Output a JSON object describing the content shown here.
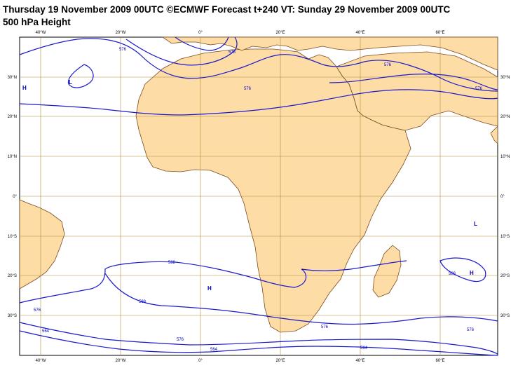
{
  "header": {
    "title": "Thursday 19 November 2009 00UTC ©ECMWF Forecast t+240 VT: Sunday 29 November 2009 00UTC",
    "subtitle": "500 hPa Height"
  },
  "colors": {
    "land": "#fddca6",
    "coast": "#7a4a1e",
    "grid": "#b08a3a",
    "contour": "#1a1acc"
  },
  "axes": {
    "lon_ticks": [
      "40°W",
      "20°W",
      "0°",
      "20°E",
      "40°E",
      "60°E"
    ],
    "lat_ticks": [
      "30°N",
      "20°N",
      "10°N",
      "0°",
      "10°S",
      "20°S",
      "30°S"
    ]
  },
  "contour_labels": [
    "576",
    "576",
    "576",
    "576",
    "576",
    "588",
    "588",
    "588",
    "576",
    "564",
    "576",
    "576",
    "564",
    "564",
    "576"
  ],
  "pressure_centers": [
    "H",
    "L",
    "H",
    "L",
    "H"
  ]
}
